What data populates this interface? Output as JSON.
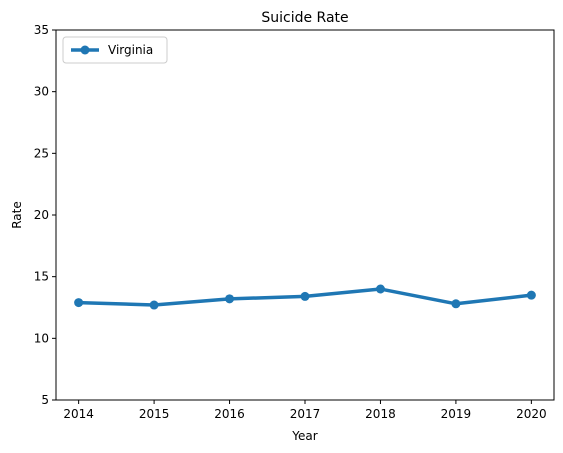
{
  "chart_data": {
    "type": "line",
    "title": "Suicide Rate",
    "xlabel": "Year",
    "ylabel": "Rate",
    "x": [
      2014,
      2015,
      2016,
      2017,
      2018,
      2019,
      2020
    ],
    "xlim": [
      2013.7,
      2020.3
    ],
    "ylim": [
      5,
      35
    ],
    "yticks": [
      5,
      10,
      15,
      20,
      25,
      30,
      35
    ],
    "grid": false,
    "legend_position": "top-left",
    "series": [
      {
        "name": "Virginia",
        "color": "#1f77b4",
        "marker": "circle",
        "values": [
          12.9,
          12.7,
          13.2,
          13.4,
          14.0,
          12.8,
          13.5
        ]
      }
    ]
  }
}
